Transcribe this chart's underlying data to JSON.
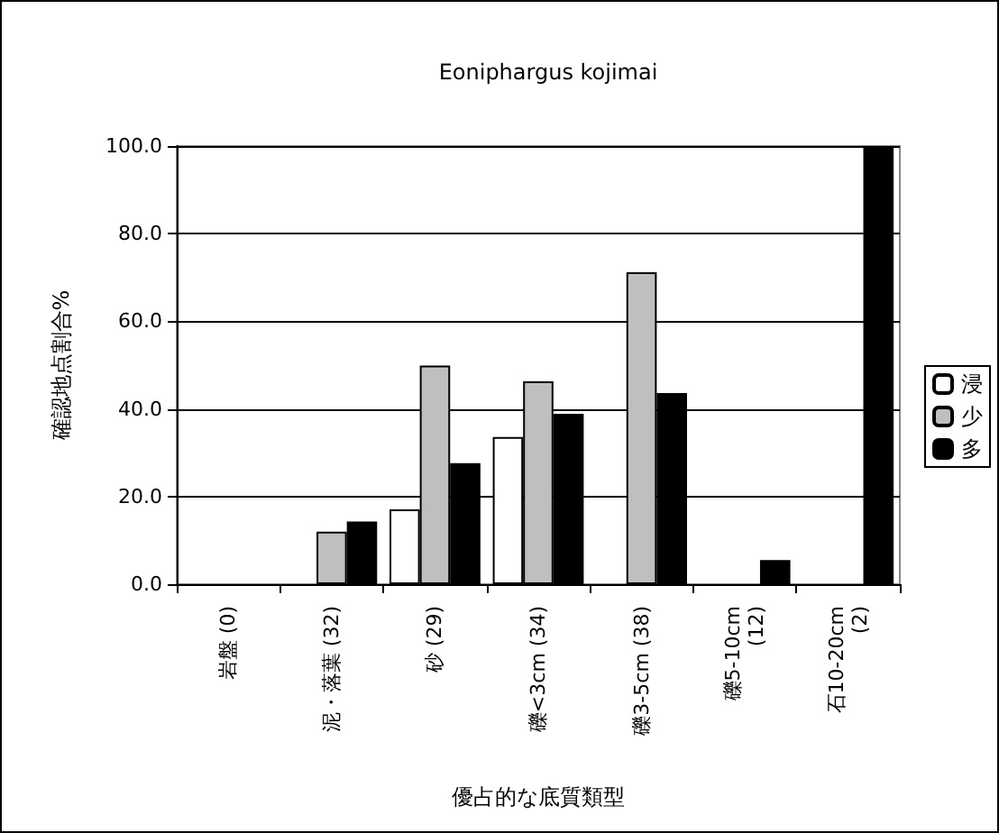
{
  "chart_data": {
    "type": "bar",
    "title": "Eoniphargus kojimai",
    "xlabel": "優占的な底質類型",
    "ylabel": "確認地点割合%",
    "categories": [
      "岩盤 (0)",
      "泥・落葉 (32)",
      "砂 (29)",
      "礫<3cm (34)",
      "礫3-5cm (38)",
      "礫5-10cm\n(12)",
      "石10-20cm\n(2)"
    ],
    "series": [
      {
        "name": "浸",
        "color": "#ffffff",
        "values": [
          0,
          0,
          17.1,
          33.6,
          0,
          0,
          0
        ]
      },
      {
        "name": "少",
        "color": "#bfbfbf",
        "values": [
          0,
          12.0,
          49.9,
          46.3,
          71.2,
          0,
          0
        ]
      },
      {
        "name": "多",
        "color": "#000000",
        "values": [
          0,
          14.3,
          27.6,
          38.9,
          43.6,
          5.5,
          100
        ]
      }
    ],
    "ylim": [
      0,
      100
    ],
    "yticks": [
      {
        "value": 0,
        "label": "0.0"
      },
      {
        "value": 20,
        "label": "20.0"
      },
      {
        "value": 40,
        "label": "40.0"
      },
      {
        "value": 60,
        "label": "60.0"
      },
      {
        "value": 80,
        "label": "80.0"
      },
      {
        "value": 100,
        "label": "100.0"
      }
    ],
    "grid": "y",
    "legend": "right"
  }
}
